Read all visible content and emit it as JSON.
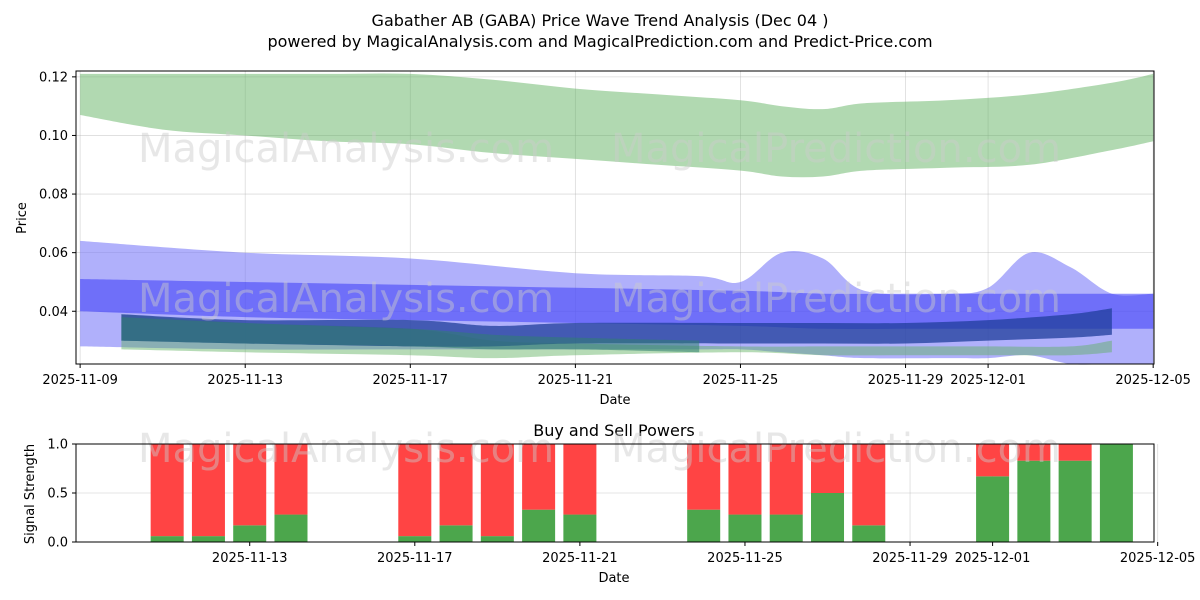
{
  "chart_data": [
    {
      "type": "area",
      "title": "Gabather AB (GABA) Price Wave Trend Analysis (Dec 04 )",
      "subtitle": "powered by MagicalAnalysis.com and MagicalPrediction.com and Predict-Price.com",
      "xlabel": "Date",
      "ylabel": "Price",
      "xlim": [
        "2025-11-08",
        "2025-12-05"
      ],
      "ylim": [
        0.022,
        0.122
      ],
      "x_ticks": [
        "2025-11-09",
        "2025-11-13",
        "2025-11-17",
        "2025-11-21",
        "2025-11-25",
        "2025-11-29",
        "2025-12-01",
        "2025-12-05"
      ],
      "y_ticks": [
        0.04,
        0.06,
        0.08,
        0.1,
        0.12
      ],
      "y_tick_labels": [
        "0.04",
        "0.06",
        "0.08",
        "0.10",
        "0.12"
      ],
      "grid": true,
      "bands": [
        {
          "name": "green-high-band",
          "color": "#5daf5d",
          "opacity": 0.48,
          "x": [
            "2025-11-09",
            "2025-11-11",
            "2025-11-13",
            "2025-11-15",
            "2025-11-17",
            "2025-11-19",
            "2025-11-21",
            "2025-11-23",
            "2025-11-25",
            "2025-11-26",
            "2025-11-27",
            "2025-11-28",
            "2025-11-30",
            "2025-12-02",
            "2025-12-04",
            "2025-12-05"
          ],
          "upper": [
            0.121,
            0.121,
            0.121,
            0.121,
            0.121,
            0.119,
            0.116,
            0.114,
            0.112,
            0.11,
            0.109,
            0.111,
            0.112,
            0.114,
            0.118,
            0.121
          ],
          "lower": [
            0.107,
            0.102,
            0.1,
            0.098,
            0.097,
            0.094,
            0.092,
            0.09,
            0.088,
            0.086,
            0.086,
            0.088,
            0.089,
            0.09,
            0.095,
            0.098
          ]
        },
        {
          "name": "blue-wide-band",
          "color": "#6f6ff7",
          "opacity": 0.55,
          "x": [
            "2025-11-09",
            "2025-11-13",
            "2025-11-17",
            "2025-11-21",
            "2025-11-24",
            "2025-11-25",
            "2025-11-26",
            "2025-11-27",
            "2025-11-28",
            "2025-11-30",
            "2025-12-01",
            "2025-12-02",
            "2025-12-03",
            "2025-12-04",
            "2025-12-05"
          ],
          "upper": [
            0.064,
            0.06,
            0.058,
            0.053,
            0.052,
            0.05,
            0.06,
            0.058,
            0.047,
            0.046,
            0.048,
            0.06,
            0.055,
            0.046,
            0.046
          ],
          "lower": [
            0.028,
            0.027,
            0.027,
            0.027,
            0.027,
            0.027,
            0.026,
            0.025,
            0.024,
            0.024,
            0.024,
            0.025,
            0.022,
            0.022,
            0.022
          ]
        },
        {
          "name": "blue-dense-band",
          "color": "#3a3af7",
          "opacity": 0.55,
          "x": [
            "2025-11-09",
            "2025-11-13",
            "2025-11-17",
            "2025-11-21",
            "2025-11-25",
            "2025-11-27",
            "2025-11-29",
            "2025-12-01",
            "2025-12-03",
            "2025-12-05"
          ],
          "upper": [
            0.051,
            0.05,
            0.049,
            0.048,
            0.047,
            0.046,
            0.046,
            0.046,
            0.046,
            0.046
          ],
          "lower": [
            0.04,
            0.038,
            0.037,
            0.036,
            0.035,
            0.034,
            0.034,
            0.034,
            0.034,
            0.034
          ]
        },
        {
          "name": "green-low-band",
          "color": "#5daf5d",
          "opacity": 0.45,
          "x": [
            "2025-11-10",
            "2025-11-13",
            "2025-11-17",
            "2025-11-19",
            "2025-11-21",
            "2025-11-25",
            "2025-11-27",
            "2025-11-29",
            "2025-12-01",
            "2025-12-03",
            "2025-12-04"
          ],
          "upper": [
            0.039,
            0.036,
            0.034,
            0.03,
            0.029,
            0.028,
            0.028,
            0.028,
            0.028,
            0.028,
            0.03
          ],
          "lower": [
            0.027,
            0.026,
            0.025,
            0.024,
            0.025,
            0.026,
            0.025,
            0.025,
            0.025,
            0.025,
            0.026
          ]
        },
        {
          "name": "dark-blue-center-band",
          "color": "#1f3e9b",
          "opacity": 0.75,
          "x": [
            "2025-11-10",
            "2025-11-13",
            "2025-11-17",
            "2025-11-19",
            "2025-11-21",
            "2025-11-25",
            "2025-11-27",
            "2025-11-29",
            "2025-12-01",
            "2025-12-03",
            "2025-12-04"
          ],
          "upper": [
            0.039,
            0.037,
            0.037,
            0.035,
            0.036,
            0.036,
            0.036,
            0.036,
            0.037,
            0.039,
            0.041
          ],
          "lower": [
            0.03,
            0.029,
            0.028,
            0.028,
            0.029,
            0.029,
            0.029,
            0.029,
            0.03,
            0.031,
            0.032
          ]
        },
        {
          "name": "teal-center-band",
          "color": "#2f7f6f",
          "opacity": 0.55,
          "x": [
            "2025-11-10",
            "2025-11-13",
            "2025-11-17",
            "2025-11-19",
            "2025-11-21",
            "2025-11-24"
          ],
          "upper": [
            0.038,
            0.036,
            0.034,
            0.032,
            0.031,
            0.03
          ],
          "lower": [
            0.03,
            0.029,
            0.028,
            0.027,
            0.027,
            0.026
          ]
        }
      ],
      "watermarks": [
        "MagicalAnalysis.com",
        "MagicalPrediction.com"
      ]
    },
    {
      "type": "bar",
      "title": "Buy and Sell Powers",
      "xlabel": "Date",
      "ylabel": "Signal Strength",
      "ylim": [
        0,
        1
      ],
      "y_ticks": [
        0,
        0.5,
        1
      ],
      "y_tick_labels": [
        "0.0",
        "0.5",
        "1.0"
      ],
      "x_ticks": [
        "2025-11-13",
        "2025-11-17",
        "2025-11-21",
        "2025-11-25",
        "2025-11-29",
        "2025-12-01",
        "2025-12-05"
      ],
      "grid": true,
      "buy_color": "#4ca64c",
      "sell_color": "#ff4444",
      "dates": [
        "2025-11-11",
        "2025-11-12",
        "2025-11-13",
        "2025-11-14",
        "2025-11-17",
        "2025-11-18",
        "2025-11-19",
        "2025-11-20",
        "2025-11-21",
        "2025-11-24",
        "2025-11-25",
        "2025-11-26",
        "2025-11-27",
        "2025-11-28",
        "2025-12-01",
        "2025-12-02",
        "2025-12-03",
        "2025-12-04"
      ],
      "series": [
        {
          "name": "Buy",
          "values": [
            0.06,
            0.06,
            0.17,
            0.28,
            0.06,
            0.17,
            0.06,
            0.33,
            0.28,
            0.33,
            0.28,
            0.28,
            0.5,
            0.17,
            0.67,
            0.83,
            0.83,
            1.0
          ]
        },
        {
          "name": "Sell",
          "values": [
            0.94,
            0.94,
            0.83,
            0.72,
            0.94,
            0.83,
            0.94,
            0.67,
            0.72,
            0.67,
            0.72,
            0.72,
            0.5,
            0.83,
            0.33,
            0.17,
            0.17,
            0.0
          ]
        }
      ],
      "watermarks": [
        "MagicalAnalysis.com",
        "MagicalPrediction.com"
      ]
    }
  ]
}
